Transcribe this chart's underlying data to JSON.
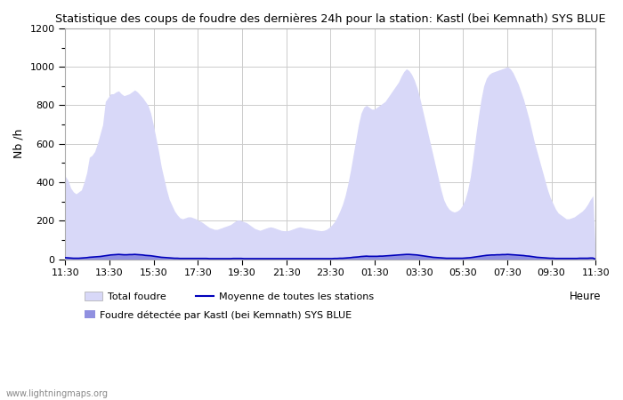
{
  "title": "Statistique des coups de foudre des dernières 24h pour la station: Kastl (bei Kemnath) SYS BLUE",
  "ylabel": "Nb /h",
  "xlabel": "Heure",
  "watermark": "www.lightningmaps.org",
  "ylim": [
    0,
    1200
  ],
  "yticks": [
    0,
    200,
    400,
    600,
    800,
    1000,
    1200
  ],
  "xtick_labels": [
    "11:30",
    "13:30",
    "15:30",
    "17:30",
    "19:30",
    "21:30",
    "23:30",
    "01:30",
    "03:30",
    "05:30",
    "07:30",
    "09:30",
    "11:30"
  ],
  "fill_color_light": "#d8d8f8",
  "fill_color_dark": "#9090e0",
  "line_color": "#0000bb",
  "background_color": "#ffffff",
  "grid_color": "#cccccc",
  "legend_labels": [
    "Total foudre",
    "Moyenne de toutes les stations",
    "Foudre détectée par Kastl (bei Kemnath) SYS BLUE"
  ],
  "total_foudre": [
    430,
    410,
    370,
    350,
    340,
    350,
    360,
    400,
    450,
    530,
    540,
    560,
    600,
    650,
    700,
    820,
    840,
    860,
    860,
    870,
    875,
    860,
    850,
    855,
    860,
    870,
    880,
    870,
    855,
    840,
    820,
    800,
    760,
    700,
    630,
    560,
    480,
    420,
    360,
    310,
    280,
    250,
    230,
    215,
    210,
    215,
    220,
    220,
    215,
    210,
    200,
    195,
    185,
    175,
    165,
    160,
    155,
    155,
    160,
    165,
    170,
    175,
    180,
    190,
    200,
    205,
    200,
    195,
    190,
    180,
    170,
    160,
    155,
    150,
    155,
    160,
    165,
    168,
    165,
    160,
    155,
    150,
    148,
    148,
    150,
    155,
    160,
    165,
    168,
    165,
    162,
    160,
    158,
    155,
    152,
    150,
    148,
    150,
    155,
    165,
    178,
    195,
    220,
    250,
    285,
    330,
    390,
    460,
    540,
    620,
    700,
    760,
    790,
    800,
    790,
    780,
    780,
    790,
    800,
    810,
    820,
    840,
    860,
    880,
    900,
    920,
    950,
    975,
    990,
    980,
    960,
    930,
    890,
    840,
    780,
    720,
    660,
    600,
    540,
    480,
    420,
    360,
    310,
    280,
    260,
    250,
    245,
    250,
    260,
    280,
    310,
    360,
    430,
    530,
    640,
    740,
    830,
    900,
    940,
    960,
    970,
    975,
    980,
    985,
    990,
    995,
    1000,
    990,
    970,
    940,
    910,
    870,
    830,
    780,
    730,
    670,
    610,
    560,
    510,
    460,
    410,
    360,
    320,
    290,
    260,
    240,
    230,
    220,
    210,
    210,
    215,
    220,
    230,
    240,
    250,
    265,
    285,
    310,
    330,
    0
  ],
  "station_foudre": [
    8,
    7,
    6,
    5,
    5,
    5,
    6,
    7,
    8,
    10,
    11,
    12,
    13,
    14,
    16,
    18,
    20,
    22,
    23,
    24,
    25,
    24,
    23,
    23,
    24,
    24,
    25,
    24,
    23,
    22,
    20,
    19,
    18,
    16,
    14,
    12,
    10,
    9,
    8,
    7,
    6,
    5,
    5,
    4,
    4,
    4,
    4,
    4,
    4,
    4,
    4,
    4,
    4,
    4,
    3,
    3,
    3,
    3,
    3,
    3,
    3,
    3,
    3,
    4,
    4,
    4,
    4,
    3,
    3,
    3,
    3,
    3,
    3,
    3,
    3,
    3,
    3,
    3,
    3,
    3,
    3,
    3,
    3,
    3,
    3,
    3,
    3,
    3,
    3,
    3,
    3,
    3,
    3,
    3,
    3,
    3,
    3,
    3,
    3,
    3,
    3,
    4,
    4,
    5,
    5,
    6,
    7,
    8,
    10,
    11,
    12,
    14,
    15,
    16,
    15,
    15,
    15,
    15,
    16,
    16,
    17,
    18,
    19,
    20,
    21,
    22,
    23,
    24,
    25,
    25,
    24,
    23,
    22,
    20,
    18,
    16,
    14,
    12,
    10,
    9,
    8,
    7,
    6,
    5,
    5,
    5,
    5,
    5,
    5,
    5,
    6,
    7,
    8,
    10,
    12,
    14,
    16,
    18,
    20,
    21,
    22,
    22,
    23,
    23,
    24,
    24,
    25,
    24,
    23,
    22,
    21,
    20,
    19,
    17,
    16,
    14,
    12,
    10,
    9,
    8,
    7,
    6,
    5,
    5,
    4,
    4,
    4,
    4,
    4,
    4,
    4,
    4,
    4,
    5,
    5,
    5,
    5,
    6,
    6,
    0
  ],
  "mean_line": [
    8,
    7,
    6,
    5,
    5,
    5,
    6,
    7,
    8,
    10,
    11,
    12,
    13,
    14,
    16,
    18,
    20,
    22,
    23,
    24,
    25,
    24,
    23,
    23,
    24,
    24,
    25,
    24,
    23,
    22,
    20,
    19,
    18,
    16,
    14,
    12,
    10,
    9,
    8,
    7,
    6,
    5,
    5,
    4,
    4,
    4,
    4,
    4,
    4,
    4,
    4,
    4,
    4,
    4,
    3,
    3,
    3,
    3,
    3,
    3,
    3,
    3,
    3,
    4,
    4,
    4,
    4,
    3,
    3,
    3,
    3,
    3,
    3,
    3,
    3,
    3,
    3,
    3,
    3,
    3,
    3,
    3,
    3,
    3,
    3,
    3,
    3,
    3,
    3,
    3,
    3,
    3,
    3,
    3,
    3,
    3,
    3,
    3,
    3,
    3,
    3,
    4,
    4,
    5,
    5,
    6,
    7,
    8,
    10,
    11,
    12,
    14,
    15,
    16,
    15,
    15,
    15,
    15,
    16,
    16,
    17,
    18,
    19,
    20,
    21,
    22,
    23,
    24,
    25,
    25,
    24,
    23,
    22,
    20,
    18,
    16,
    14,
    12,
    10,
    9,
    8,
    7,
    6,
    5,
    5,
    5,
    5,
    5,
    5,
    5,
    6,
    7,
    8,
    10,
    12,
    14,
    16,
    18,
    20,
    21,
    22,
    22,
    23,
    23,
    24,
    24,
    25,
    24,
    23,
    22,
    21,
    20,
    19,
    17,
    16,
    14,
    12,
    10,
    9,
    8,
    7,
    6,
    5,
    5,
    4,
    4,
    4,
    4,
    4,
    4,
    4,
    4,
    4,
    5,
    5,
    5,
    5,
    6,
    6,
    0
  ]
}
